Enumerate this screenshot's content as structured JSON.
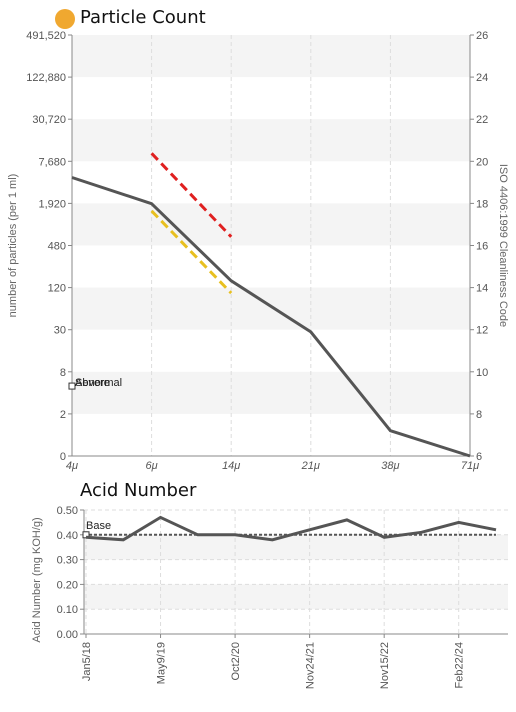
{
  "header": {
    "title": "Particle Count",
    "dot_color": "#f0a830"
  },
  "chart_data": [
    {
      "type": "line",
      "title": "Particle Count",
      "xlabel": "",
      "ylabel": "number of particles (per 1 ml)",
      "y2label": "ISO 4406:1999 Cleanliness Code",
      "categories": [
        "4μ",
        "6μ",
        "14μ",
        "21μ",
        "38μ",
        "71μ"
      ],
      "y_scale": "log2",
      "y_ticks": [
        "0",
        "2",
        "8",
        "30",
        "120",
        "480",
        "1,920",
        "7,680",
        "30,720",
        "122,880",
        "491,520"
      ],
      "y2_ticks": [
        "6",
        "8",
        "10",
        "12",
        "14",
        "16",
        "18",
        "20",
        "22",
        "24",
        "26"
      ],
      "series": [
        {
          "values": [
            4500,
            1900,
            150,
            28,
            1.2,
            0
          ],
          "color": "#555555"
        },
        {
          "x": [
            "6μ",
            "14μ"
          ],
          "values": [
            10000,
            640
          ],
          "color": "#e02020",
          "dashed": true
        },
        {
          "x": [
            "6μ",
            "14μ"
          ],
          "values": [
            1500,
            100
          ],
          "color": "#e8c020",
          "dashed": true
        }
      ],
      "legend_labels": [
        "Severe",
        "Abnormal"
      ],
      "grid": true
    },
    {
      "type": "line",
      "title": "Acid Number",
      "xlabel": "",
      "ylabel": "Acid Number (mg KOH/g)",
      "ylim": [
        0,
        0.5
      ],
      "y_ticks": [
        "0.00",
        "0.10",
        "0.20",
        "0.30",
        "0.40",
        "0.50"
      ],
      "x_tick_labels": [
        "Jan5/18",
        "May9/19",
        "Oct2/20",
        "Nov24/21",
        "Nov15/22",
        "Feb22/24"
      ],
      "series": [
        {
          "values": [
            0.39,
            0.38,
            0.47,
            0.4,
            0.4,
            0.38,
            0.42,
            0.46,
            0.39,
            0.41,
            0.45,
            0.42
          ],
          "color": "#555555"
        }
      ],
      "baseline": {
        "label": "Base",
        "value": 0.4
      },
      "grid": true
    }
  ]
}
